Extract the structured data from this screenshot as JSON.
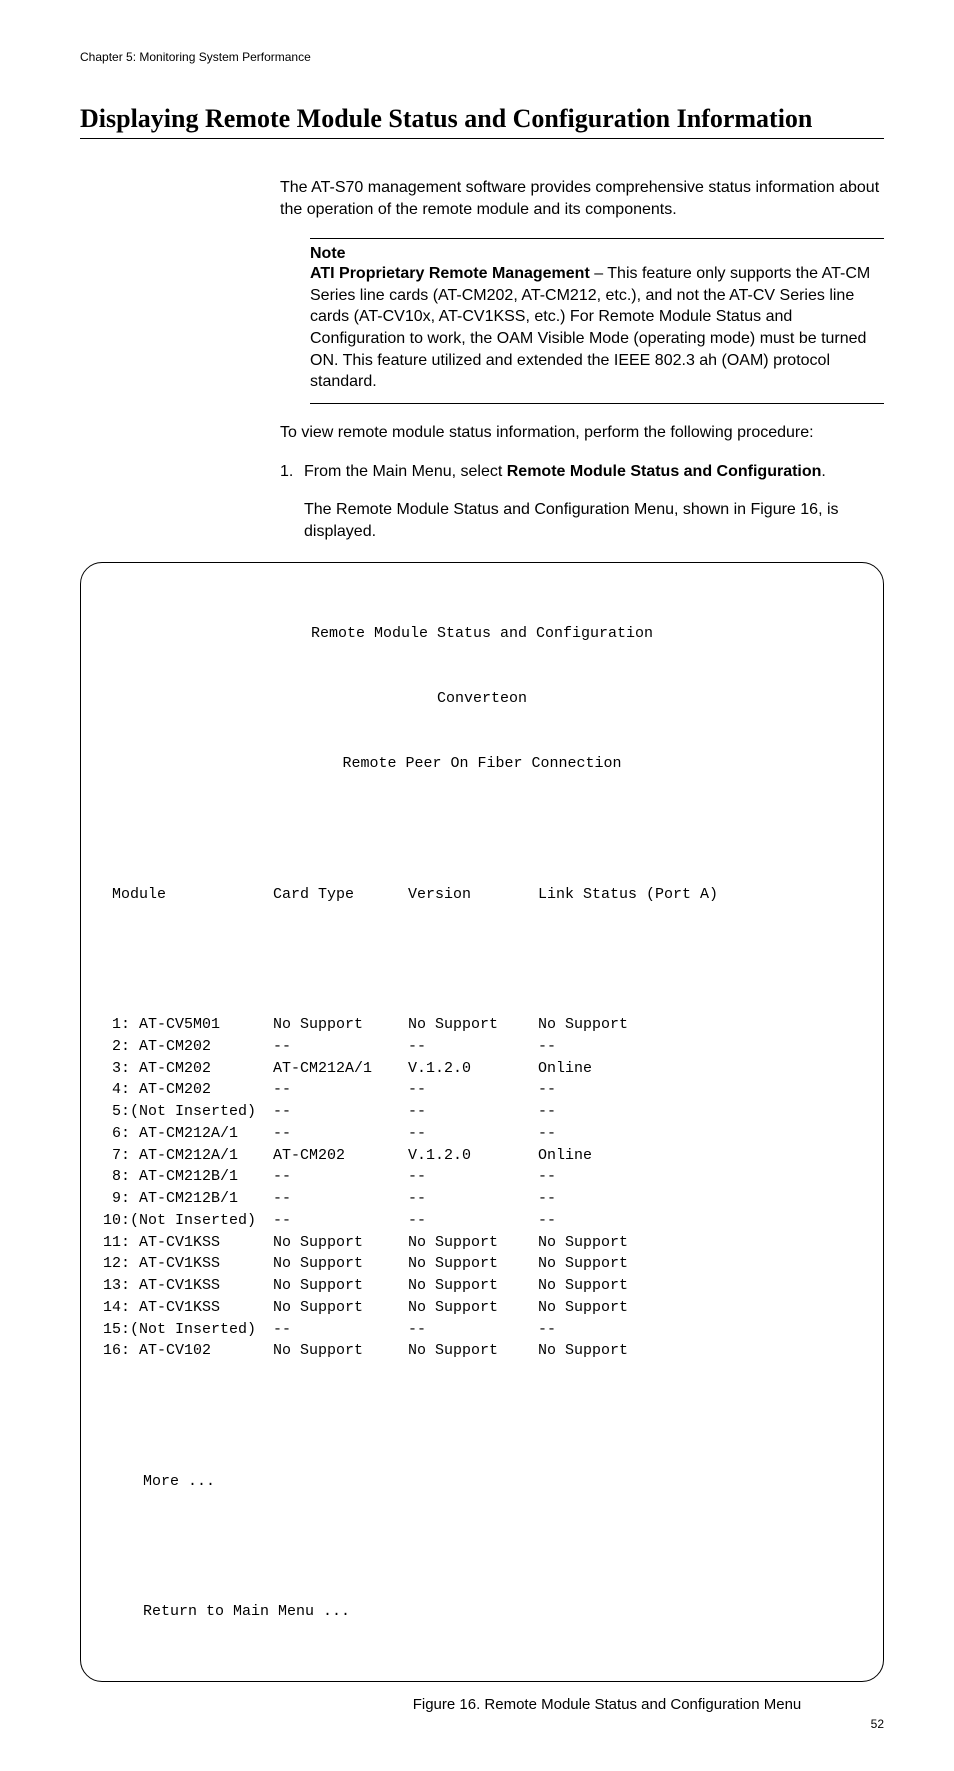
{
  "page": {
    "running_header": "Chapter 5: Monitoring System Performance",
    "section_title": "Displaying Remote Module Status and Configuration Information",
    "intro": "The AT-S70 management software provides comprehensive status information about the operation of the remote module and its components.",
    "note": {
      "label": "Note",
      "bold_lead": "ATI Proprietary Remote Management",
      "body": " – This feature only supports the AT-CM Series line cards (AT-CM202, AT-CM212, etc.), and not the AT-CV Series line cards (AT-CV10x, AT-CV1KSS, etc.) For Remote Module Status and Configuration to work, the OAM Visible Mode (operating mode) must be turned ON. This feature utilized and extended the IEEE 802.3 ah (OAM) protocol standard."
    },
    "procedure_intro": "To view remote module status information, perform the following procedure:",
    "step1_num": "1.",
    "step1_pre": "From the Main Menu, select ",
    "step1_bold": "Remote Module Status and Configuration",
    "step1_post": ".",
    "step1_result": "The Remote Module Status and Configuration Menu, shown in Figure 16, is displayed.",
    "figure_caption": "Figure 16. Remote Module Status and Configuration Menu",
    "page_number": "52"
  },
  "terminal": {
    "title1": "Remote Module Status and Configuration",
    "title2": "Converteon",
    "title3": "Remote Peer On Fiber Connection",
    "headers": {
      "c1": " Module",
      "c2": "Card Type",
      "c3": "Version",
      "c4": "Link Status (Port A)"
    },
    "rows": [
      {
        "c1": " 1: AT-CV5M01",
        "c2": "No Support",
        "c3": "No Support",
        "c4": "No Support"
      },
      {
        "c1": " 2: AT-CM202",
        "c2": "--",
        "c3": "--",
        "c4": "--"
      },
      {
        "c1": " 3: AT-CM202",
        "c2": "AT-CM212A/1",
        "c3": "V.1.2.0",
        "c4": "Online"
      },
      {
        "c1": " 4: AT-CM202",
        "c2": "--",
        "c3": "--",
        "c4": "--"
      },
      {
        "c1": " 5:(Not Inserted)",
        "c2": "--",
        "c3": "--",
        "c4": "--"
      },
      {
        "c1": " 6: AT-CM212A/1",
        "c2": "--",
        "c3": "--",
        "c4": "--"
      },
      {
        "c1": " 7: AT-CM212A/1",
        "c2": "AT-CM202",
        "c3": "V.1.2.0",
        "c4": "Online"
      },
      {
        "c1": " 8: AT-CM212B/1",
        "c2": "--",
        "c3": "--",
        "c4": "--"
      },
      {
        "c1": " 9: AT-CM212B/1",
        "c2": "--",
        "c3": "--",
        "c4": "--"
      },
      {
        "c1": "10:(Not Inserted)",
        "c2": "--",
        "c3": "--",
        "c4": "--"
      },
      {
        "c1": "11: AT-CV1KSS",
        "c2": "No Support",
        "c3": "No Support",
        "c4": "No Support"
      },
      {
        "c1": "12: AT-CV1KSS",
        "c2": "No Support",
        "c3": "No Support",
        "c4": "No Support"
      },
      {
        "c1": "13: AT-CV1KSS",
        "c2": "No Support",
        "c3": "No Support",
        "c4": "No Support"
      },
      {
        "c1": "14: AT-CV1KSS",
        "c2": "No Support",
        "c3": "No Support",
        "c4": "No Support"
      },
      {
        "c1": "15:(Not Inserted)",
        "c2": "--",
        "c3": "--",
        "c4": "--"
      },
      {
        "c1": "16: AT-CV102",
        "c2": "No Support",
        "c3": "No Support",
        "c4": "No Support"
      }
    ],
    "more": "More ...",
    "return": "Return to Main Menu ..."
  }
}
